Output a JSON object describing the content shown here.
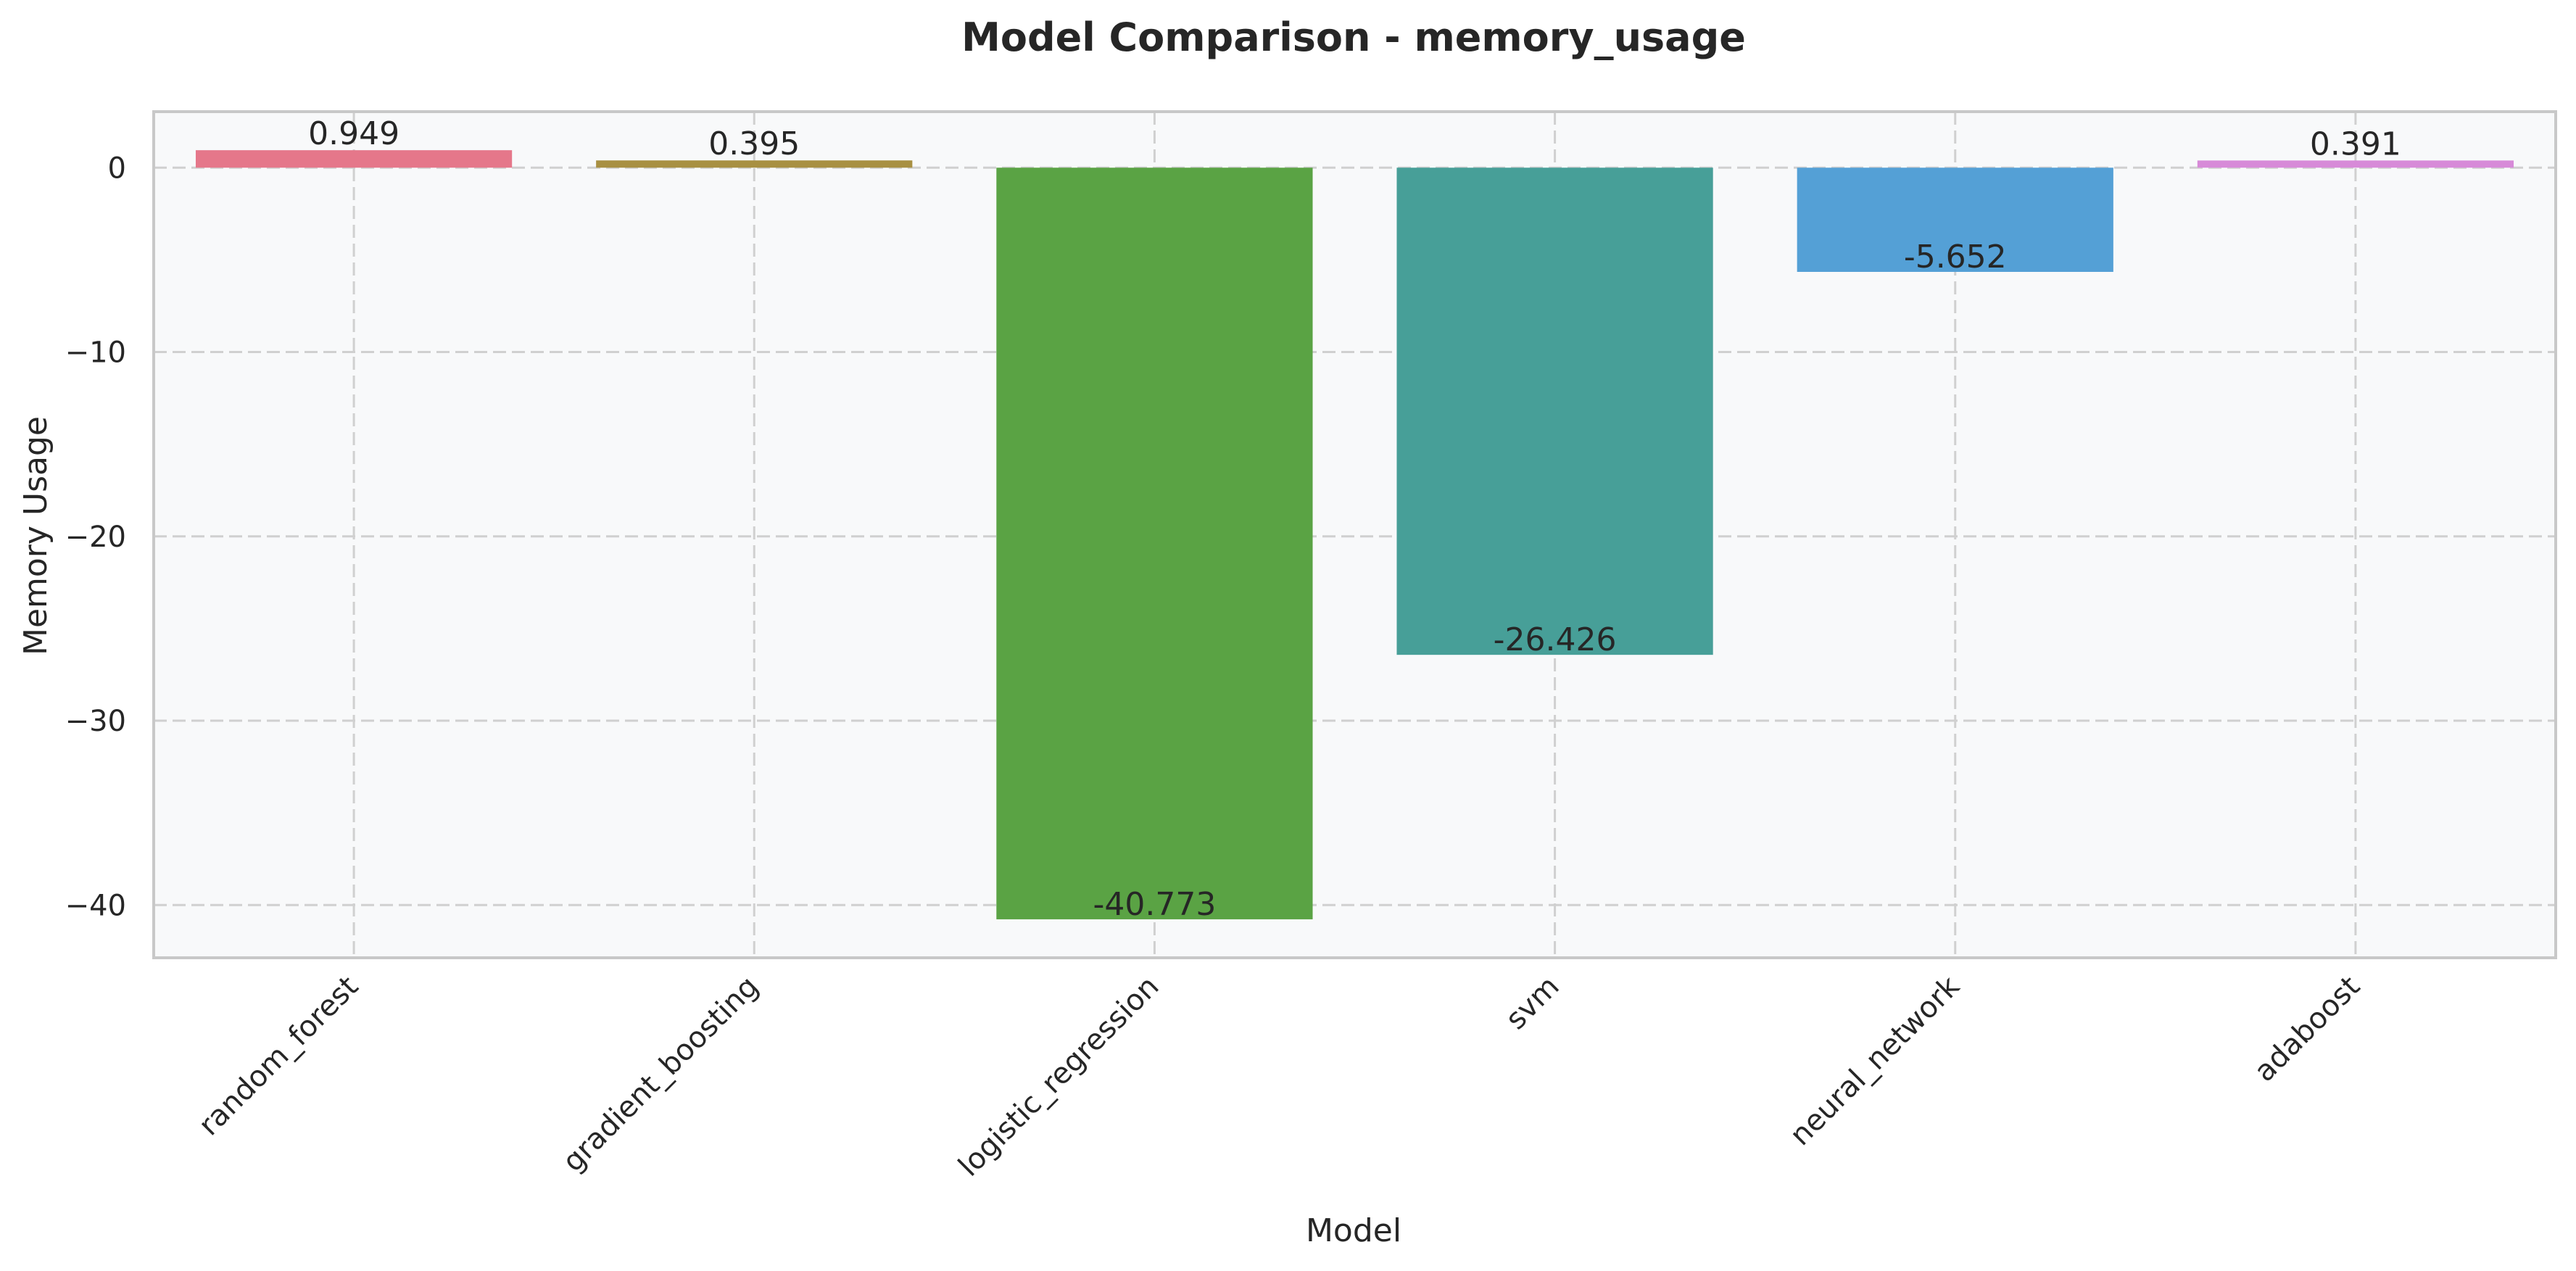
{
  "chart_data": {
    "type": "bar",
    "title": "Model Comparison - memory_usage",
    "xlabel": "Model",
    "ylabel": "Memory Usage",
    "categories": [
      "random_forest",
      "gradient_boosting",
      "logistic_regression",
      "svm",
      "neural_network",
      "adaboost"
    ],
    "values": [
      0.949,
      0.395,
      -40.773,
      -26.426,
      -5.652,
      0.391
    ],
    "value_labels": [
      "0.949",
      "0.395",
      "-40.773",
      "-26.426",
      "-5.652",
      "0.391"
    ],
    "bar_colors": [
      "#e5778a",
      "#a89042",
      "#5aa344",
      "#479f98",
      "#54a0d6",
      "#d78ad8"
    ],
    "ylim": [
      -42.86,
      3.04
    ],
    "yticks": [
      0,
      -10,
      -20,
      -30,
      -40
    ],
    "ytick_labels": [
      "0",
      "−10",
      "−20",
      "−30",
      "−40"
    ],
    "grid": true,
    "plot_background": "#f8f9fa",
    "spine_color": "#c8c8c8"
  }
}
